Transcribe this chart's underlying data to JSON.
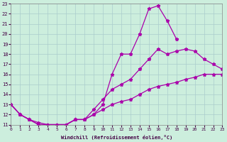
{
  "xlabel": "Windchill (Refroidissement éolien,°C)",
  "bg_color": "#cceedd",
  "grid_color": "#aacccc",
  "line_color": "#aa00aa",
  "xlim": [
    0,
    23
  ],
  "ylim": [
    11,
    23
  ],
  "yticks": [
    11,
    12,
    13,
    14,
    15,
    16,
    17,
    18,
    19,
    20,
    21,
    22,
    23
  ],
  "xticks": [
    0,
    1,
    2,
    3,
    4,
    5,
    6,
    7,
    8,
    9,
    10,
    11,
    12,
    13,
    14,
    15,
    16,
    17,
    18,
    19,
    20,
    21,
    22,
    23
  ],
  "series1_x": [
    0,
    1,
    2,
    3,
    4,
    5,
    6,
    7,
    8,
    9,
    10,
    11,
    12,
    13,
    14,
    15,
    16,
    17,
    18
  ],
  "series1_y": [
    13.0,
    12.0,
    11.5,
    11.0,
    11.0,
    11.0,
    11.0,
    11.5,
    11.5,
    12.0,
    13.0,
    16.0,
    18.0,
    18.0,
    20.0,
    22.5,
    22.8,
    21.3,
    19.5
  ],
  "series2_x": [
    0,
    1,
    2,
    3,
    4,
    5,
    6,
    7,
    8,
    9,
    10,
    11,
    12,
    13,
    14,
    15,
    16,
    17,
    18,
    19,
    20,
    21,
    22,
    23
  ],
  "series2_y": [
    13.0,
    12.0,
    11.5,
    11.0,
    11.0,
    11.0,
    11.0,
    11.5,
    11.5,
    12.5,
    13.5,
    14.5,
    15.0,
    15.5,
    16.5,
    17.5,
    18.5,
    18.0,
    18.3,
    18.5,
    18.3,
    17.5,
    17.0,
    16.5
  ],
  "series3_x": [
    0,
    1,
    2,
    3,
    4,
    5,
    6,
    7,
    8,
    9,
    10,
    11,
    12,
    13,
    14,
    15,
    16,
    17,
    18,
    19,
    20,
    21,
    22,
    23
  ],
  "series3_y": [
    13.0,
    12.0,
    11.5,
    11.2,
    11.0,
    11.0,
    11.0,
    11.5,
    11.5,
    12.0,
    12.5,
    13.0,
    13.3,
    13.5,
    14.0,
    14.5,
    14.8,
    15.0,
    15.2,
    15.5,
    15.7,
    16.0,
    16.0,
    16.0
  ]
}
